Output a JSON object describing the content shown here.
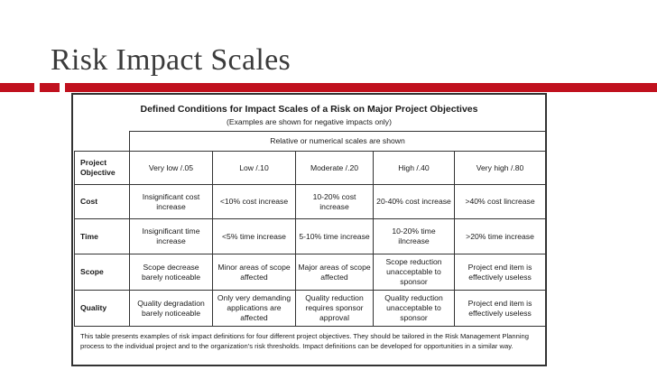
{
  "slide": {
    "title": "Risk Impact Scales",
    "accent_color": "#c0111e"
  },
  "table": {
    "title": "Defined Conditions for Impact Scales of a Risk on Major Project Objectives",
    "subtitle": "(Examples are shown for negative impacts only)",
    "scale_note": "Relative or numerical scales are shown",
    "objective_header": "Project Objective",
    "levels": [
      "Very low /.05",
      "Low /.10",
      "Moderate /.20",
      "High /.40",
      "Very high /.80"
    ],
    "rows": [
      {
        "objective": "Cost",
        "cells": [
          "Insignificant cost increase",
          "<10% cost increase",
          "10-20% cost increase",
          "20-40% cost increase",
          ">40% cost lincrease"
        ]
      },
      {
        "objective": "Time",
        "cells": [
          "Insignificant time increase",
          "<5% time increase",
          "5-10% time increase",
          "10-20% time ilncrease",
          ">20% time increase"
        ]
      },
      {
        "objective": "Scope",
        "cells": [
          "Scope decrease barely noticeable",
          "Minor areas of scope affected",
          "Major areas of scope affected",
          "Scope reduction unacceptable to sponsor",
          "Project end item is effectively useless"
        ]
      },
      {
        "objective": "Quality",
        "cells": [
          "Quality degradation barely noticeable",
          "Only very demanding applications are affected",
          "Quality reduction requires sponsor approval",
          "Quality reduction unacceptable to sponsor",
          "Project end item is effectively useless"
        ]
      }
    ],
    "footnote": "This table presents examples of risk impact definitions for four different project objectives. They should be tailored in the Risk Management Planning process to the individual project and to the organization's risk thresholds. Impact definitions can be developed for opportunities in a similar way."
  }
}
